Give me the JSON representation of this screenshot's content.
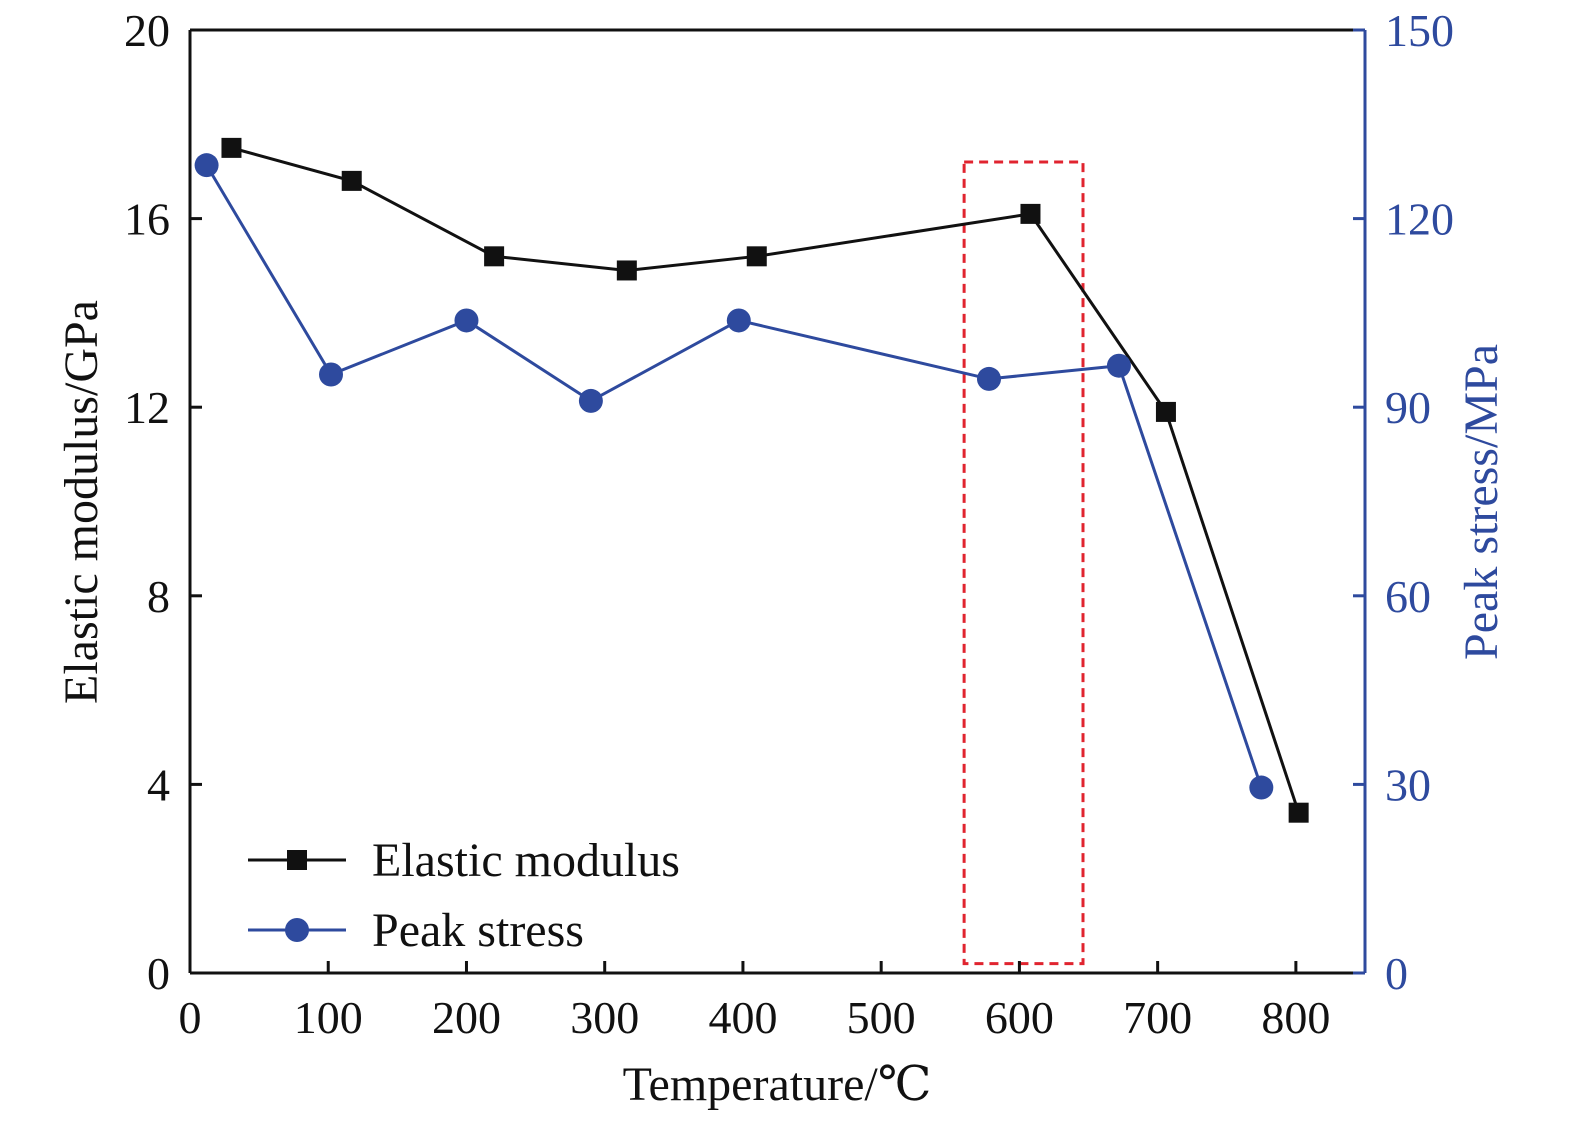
{
  "chart_data": {
    "type": "line",
    "xlabel": "Temperature/℃",
    "ylabel_left": "Elastic modulus/GPa",
    "ylabel_right": "Peak stress/MPa",
    "xlim": [
      0,
      850
    ],
    "ylim_left": [
      0,
      20
    ],
    "ylim_right": [
      0,
      150
    ],
    "x_ticks": [
      "0",
      "100",
      "200",
      "300",
      "400",
      "500",
      "600",
      "700",
      "800"
    ],
    "y_left_ticks": [
      "0",
      "4",
      "8",
      "12",
      "16",
      "20"
    ],
    "y_right_ticks": [
      "0",
      "30",
      "60",
      "90",
      "120",
      "150"
    ],
    "grid": false,
    "legend_position": "bottom-left",
    "series": [
      {
        "name": "Elastic modulus",
        "axis": "left",
        "color": "#111111",
        "marker": "square",
        "x": [
          30,
          117,
          220,
          316,
          410,
          608,
          706,
          802
        ],
        "y": [
          17.5,
          16.8,
          15.2,
          14.9,
          15.2,
          16.1,
          11.9,
          3.4
        ]
      },
      {
        "name": "Peak stress",
        "axis": "right",
        "color": "#2e4a9e",
        "marker": "circle",
        "x": [
          12,
          102,
          200,
          290,
          397,
          578,
          672,
          775
        ],
        "y": [
          128.5,
          95.2,
          103.8,
          91.0,
          103.8,
          94.5,
          96.6,
          29.5
        ]
      }
    ],
    "annotations": [
      {
        "type": "dashed-rectangle",
        "color": "#e0242f",
        "x_range": [
          560,
          646
        ],
        "y_left_range": [
          0.2,
          17.2
        ]
      }
    ]
  }
}
